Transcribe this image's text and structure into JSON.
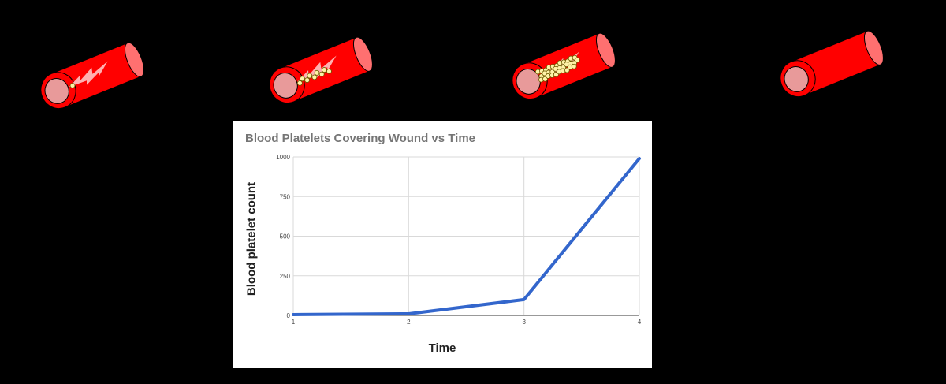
{
  "colors": {
    "background": "#000000",
    "vessel_red": "#ff0000",
    "vessel_dark": "#cc0000",
    "lumen": "#e89a9a",
    "platelet": "#fff2a8",
    "line": "#3366cc",
    "grid": "#d9d9d9"
  },
  "vessels": [
    {
      "stage": "wound",
      "icon": "blood-vessel-wound-icon",
      "platelets": 1
    },
    {
      "stage": "few-platelets",
      "icon": "blood-vessel-few-platelets-icon",
      "platelets": 9
    },
    {
      "stage": "many-platelets",
      "icon": "blood-vessel-clot-icon",
      "platelets": 32
    },
    {
      "stage": "healed",
      "icon": "blood-vessel-healed-icon",
      "platelets": 0
    }
  ],
  "chart_data": {
    "type": "line",
    "title": "Blood Platelets Covering Wound vs Time",
    "xlabel": "Time",
    "ylabel": "Blood platelet count",
    "x": [
      1,
      2,
      3,
      4
    ],
    "series": [
      {
        "values": [
          5,
          10,
          100,
          990
        ]
      }
    ],
    "x_ticks": [
      "1",
      "2",
      "3",
      "4"
    ],
    "y_ticks": [
      "0",
      "250",
      "500",
      "750",
      "1000"
    ],
    "ylim": [
      0,
      1000
    ],
    "xlim": [
      1,
      4
    ],
    "grid": true,
    "legend": "none"
  }
}
